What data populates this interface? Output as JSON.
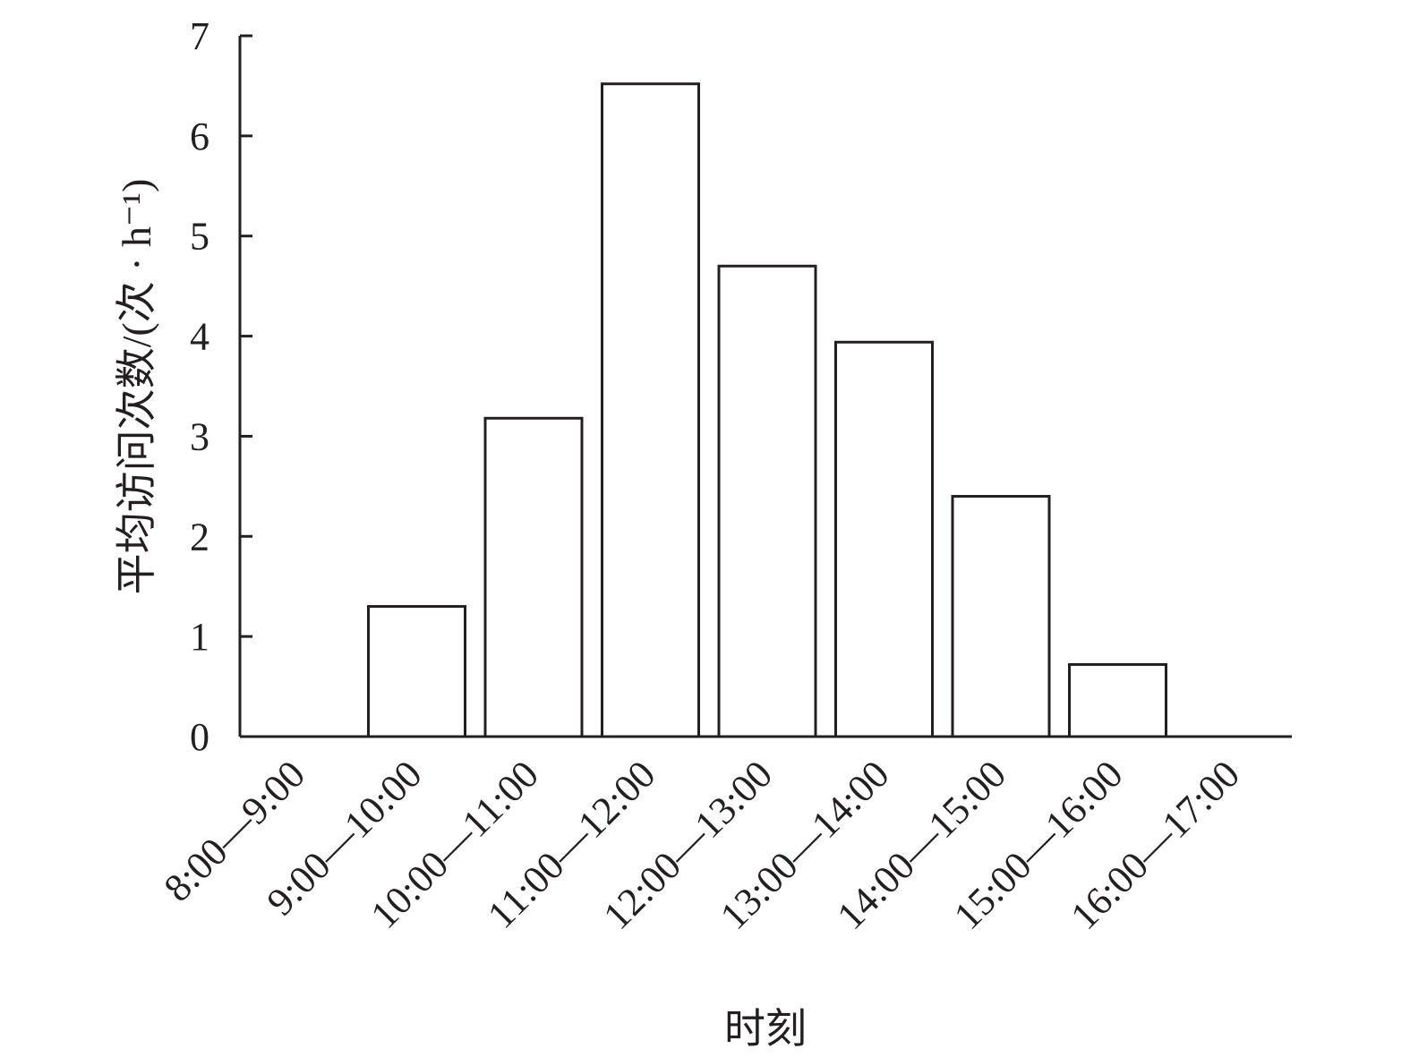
{
  "chart_data": {
    "type": "bar",
    "categories": [
      "8:00—9:00",
      "9:00—10:00",
      "10:00—11:00",
      "11:00—12:00",
      "12:00—13:00",
      "13:00—14:00",
      "14:00—15:00",
      "15:00—16:00",
      "16:00—17:00"
    ],
    "values": [
      0,
      1.3,
      3.18,
      6.52,
      4.7,
      3.94,
      2.4,
      0.72,
      0
    ],
    "title": "",
    "xlabel": "时刻",
    "ylabel": "平均访问次数/(次 · h⁻¹)",
    "ylim": [
      0,
      7
    ],
    "yticks": [
      "0",
      "1",
      "2",
      "3",
      "4",
      "5",
      "6",
      "7"
    ],
    "grid": false,
    "bar_fill": "#ffffff",
    "bar_stroke": "#231f20"
  }
}
